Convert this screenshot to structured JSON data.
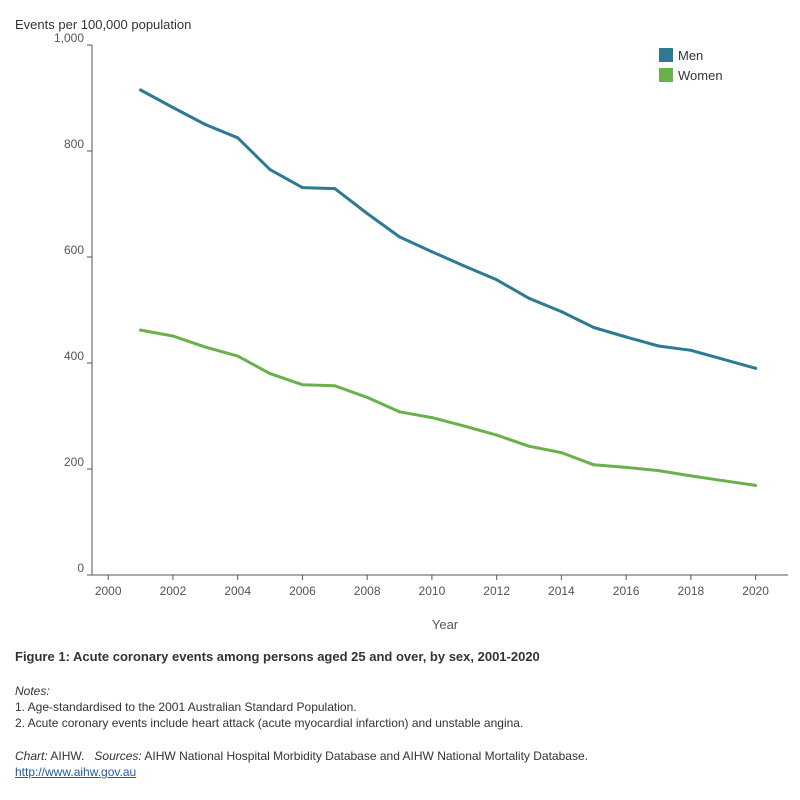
{
  "chart_data": {
    "type": "line",
    "title": "Figure 1: Acute coronary events among persons aged 25 and over, by sex, 2001-2020",
    "xlabel": "Year",
    "ylabel": "Events per 100,000 population",
    "xlim": [
      1999.5,
      2021
    ],
    "ylim": [
      0,
      1000
    ],
    "x_ticks": [
      2000,
      2002,
      2004,
      2006,
      2008,
      2010,
      2012,
      2014,
      2016,
      2018,
      2020
    ],
    "y_ticks": [
      0,
      200,
      400,
      600,
      800,
      1000
    ],
    "y_tick_labels": [
      "0",
      "200",
      "400",
      "600",
      "800",
      "1,000"
    ],
    "x": [
      2001,
      2002,
      2003,
      2004,
      2005,
      2006,
      2007,
      2008,
      2009,
      2010,
      2011,
      2012,
      2013,
      2014,
      2015,
      2016,
      2017,
      2018,
      2019,
      2020
    ],
    "series": [
      {
        "name": "Men",
        "color": "#2e7a95",
        "values": [
          915,
          882,
          850,
          825,
          765,
          731,
          729,
          682,
          638,
          610,
          583,
          557,
          522,
          497,
          467,
          449,
          432,
          424,
          407,
          390
        ]
      },
      {
        "name": "Women",
        "color": "#6ab04c",
        "values": [
          462,
          451,
          430,
          413,
          380,
          359,
          357,
          335,
          308,
          297,
          281,
          264,
          243,
          231,
          208,
          203,
          197,
          187,
          178,
          169
        ]
      }
    ],
    "legend_position": "top-right",
    "grid": false
  },
  "notes": {
    "title": "Notes:",
    "items": [
      "1. Age-standardised to the 2001 Australian Standard Population.",
      "2. Acute coronary events include heart attack (acute myocardial infarction) and unstable angina."
    ]
  },
  "source": {
    "chart_label": "Chart:",
    "chart_value": "AIHW.",
    "sources_label": "Sources:",
    "sources_value": "AIHW National Hospital Morbidity Database and AIHW National Mortality Database.",
    "url": "http://www.aihw.gov.au"
  }
}
